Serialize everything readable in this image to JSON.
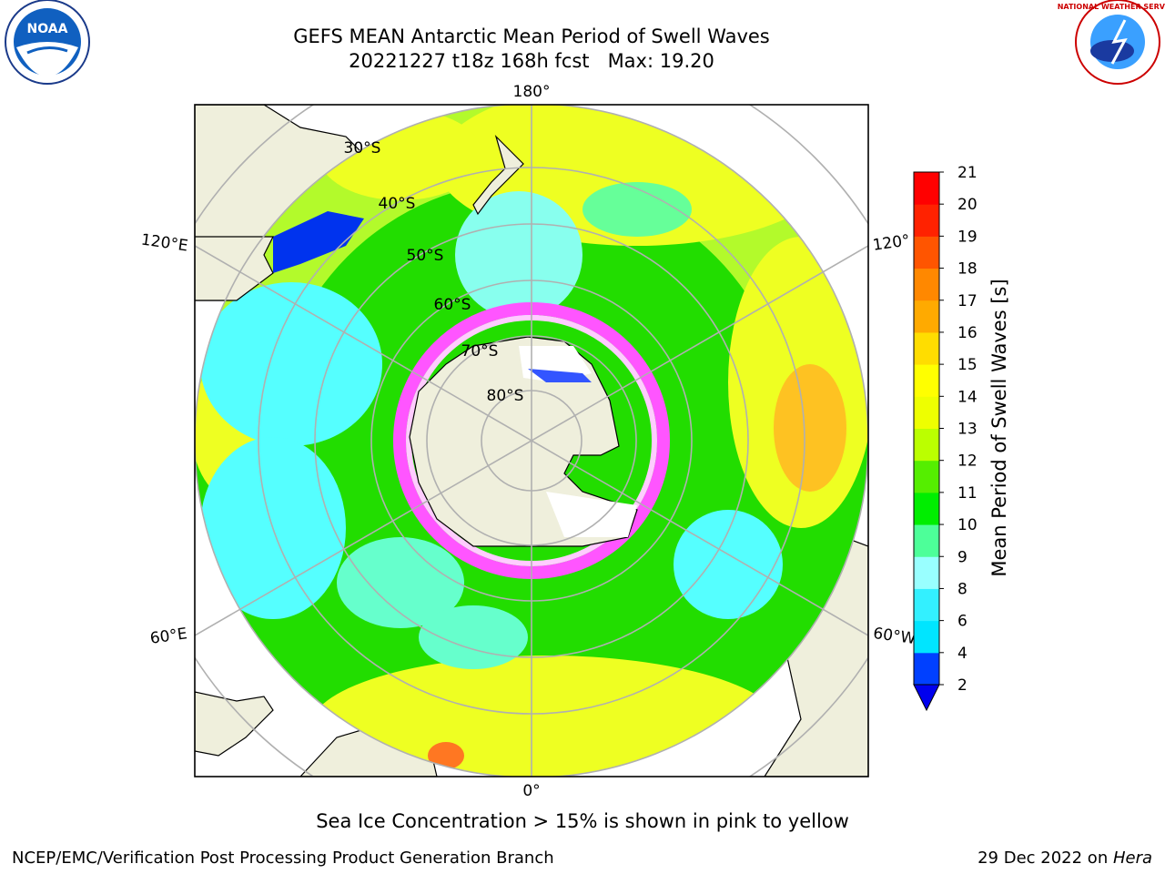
{
  "title_line1": "GEFS MEAN Antarctic Mean Period of Swell Waves",
  "title_line2": "20221227 t18z 168h fcst   Max: 19.20",
  "caption": "Sea Ice Concentration > 15% is shown in pink to yellow",
  "footer_left": "NCEP/EMC/Verification Post Processing Product Generation Branch",
  "footer_right_date": "29 Dec 2022 on ",
  "footer_right_host": "Hera",
  "colorbar": {
    "label": "Mean Period of Swell Waves [s]",
    "ticks": [
      "2",
      "4",
      "6",
      "8",
      "9",
      "10",
      "11",
      "12",
      "13",
      "14",
      "15",
      "16",
      "17",
      "18",
      "19",
      "20",
      "21"
    ],
    "colors": [
      "#0040ff",
      "#00e5ff",
      "#33f0ff",
      "#99ffff",
      "#4dff99",
      "#00ee00",
      "#55ee00",
      "#bbff00",
      "#eeff00",
      "#ffff00",
      "#ffdd00",
      "#ffaa00",
      "#ff8800",
      "#ff5500",
      "#ff2200",
      "#ff0000"
    ],
    "extend_color": "#0000ee"
  },
  "grid_labels": {
    "lon_top": "180°",
    "lon_bottom": "0°",
    "lon_left_upper": "120°E",
    "lon_left_lower": "60°E",
    "lon_right_upper": "120°",
    "lon_right_lower": "60°W",
    "lat": [
      "30°S",
      "40°S",
      "50°S",
      "60°S",
      "70°S",
      "80°S"
    ]
  },
  "colors": {
    "land": "#efefdc",
    "ocean_green": "#22dd00",
    "ocean_yellow": "#eeff22",
    "ocean_cyan": "#55ffff",
    "ice_pink": "#ff55ff"
  },
  "logos": {
    "left_logo_text": "NOAA",
    "right_logo_text": "NATIONAL WEATHER SERVICE"
  }
}
